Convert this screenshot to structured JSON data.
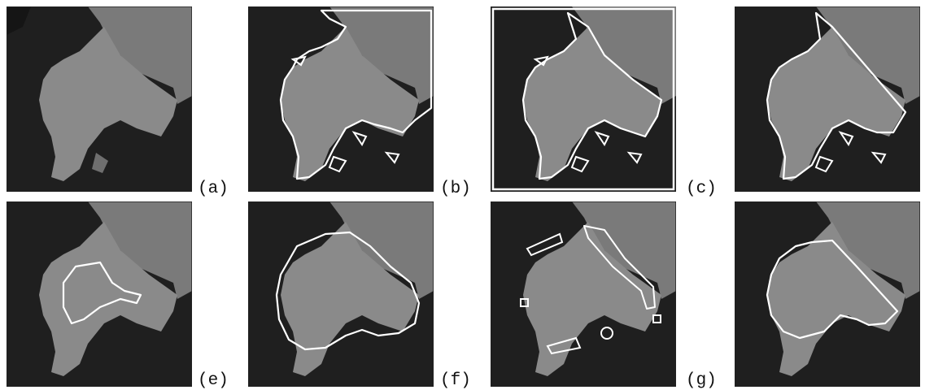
{
  "figure": {
    "panels": [
      {
        "id": "a",
        "label": "(a)",
        "overlay": "none"
      },
      {
        "id": "b",
        "label": "(b)",
        "overlay": "threshold-contours"
      },
      {
        "id": "c",
        "label": "(c)",
        "overlay": "threshold-contours-with-frame"
      },
      {
        "id": "d",
        "label": "",
        "overlay": "contour-with-diagonal-cut"
      },
      {
        "id": "e",
        "label": "(e)",
        "overlay": "initial-contour"
      },
      {
        "id": "f",
        "label": "(f)",
        "overlay": "smooth-contour"
      },
      {
        "id": "g",
        "label": "(g)",
        "overlay": "multiple-small-contours"
      },
      {
        "id": "h",
        "label": "",
        "overlay": "final-contour"
      }
    ],
    "colors": {
      "background": "#1e1e1e",
      "tissue": "#848484",
      "contour": "#ffffff",
      "frame": "#222222"
    }
  }
}
